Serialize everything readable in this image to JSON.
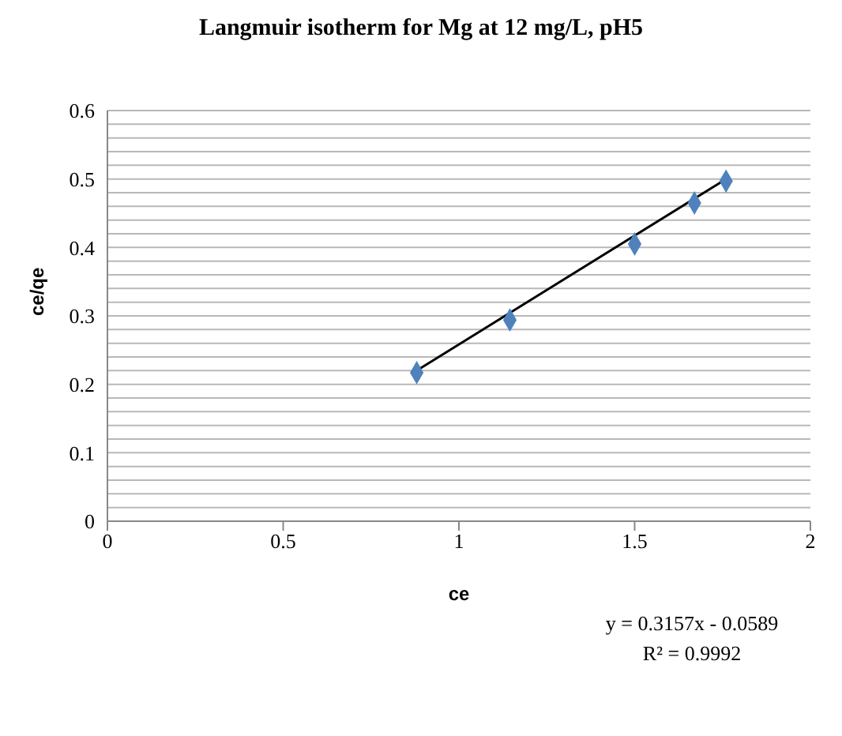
{
  "chart_data": {
    "type": "scatter",
    "title": "Langmuir isotherm for Mg at 12 mg/L, pH5",
    "xlabel": "ce",
    "ylabel": "ce/qe",
    "series": [
      {
        "color": "#4f81bd",
        "x": [
          0.88,
          1.145,
          1.5,
          1.67,
          1.76
        ],
        "values": [
          0.217,
          0.294,
          0.405,
          0.465,
          0.497
        ],
        "marker": "diamond"
      },
      {
        "type": "line",
        "color": "#000000",
        "x": [
          0.88,
          1.76
        ],
        "values": [
          0.22,
          0.5
        ],
        "marker": "none"
      }
    ],
    "xlim": [
      0,
      2
    ],
    "xticks": [
      0,
      0.5,
      1,
      1.5,
      2
    ],
    "ylim": [
      0,
      0.6
    ],
    "yticks": [
      0,
      {
        "value": 0.02,
        "label": null
      },
      {
        "value": 0.04,
        "label": null
      },
      {
        "value": 0.06,
        "label": null
      },
      {
        "value": 0.08,
        "label": null
      },
      0.1,
      {
        "value": 0.12,
        "label": null
      },
      {
        "value": 0.14,
        "label": null
      },
      {
        "value": 0.16,
        "label": null
      },
      {
        "value": 0.18,
        "label": null
      },
      0.2,
      {
        "value": 0.22,
        "label": null
      },
      {
        "value": 0.24,
        "label": null
      },
      {
        "value": 0.26,
        "label": null
      },
      {
        "value": 0.28,
        "label": null
      },
      0.3,
      {
        "value": 0.32,
        "label": null
      },
      {
        "value": 0.34,
        "label": null
      },
      {
        "value": 0.36,
        "label": null
      },
      {
        "value": 0.38,
        "label": null
      },
      0.4,
      {
        "value": 0.42,
        "label": null
      },
      {
        "value": 0.44,
        "label": null
      },
      {
        "value": 0.46,
        "label": null
      },
      {
        "value": 0.48,
        "label": null
      },
      0.5,
      {
        "value": 0.52,
        "label": null
      },
      {
        "value": 0.54,
        "label": null
      },
      {
        "value": 0.56,
        "label": null
      },
      {
        "value": 0.58,
        "label": null
      },
      0.6
    ],
    "grid": "y",
    "annotations": [
      "y = 0.3157x - 0.0589",
      "R² = 0.9992"
    ]
  }
}
